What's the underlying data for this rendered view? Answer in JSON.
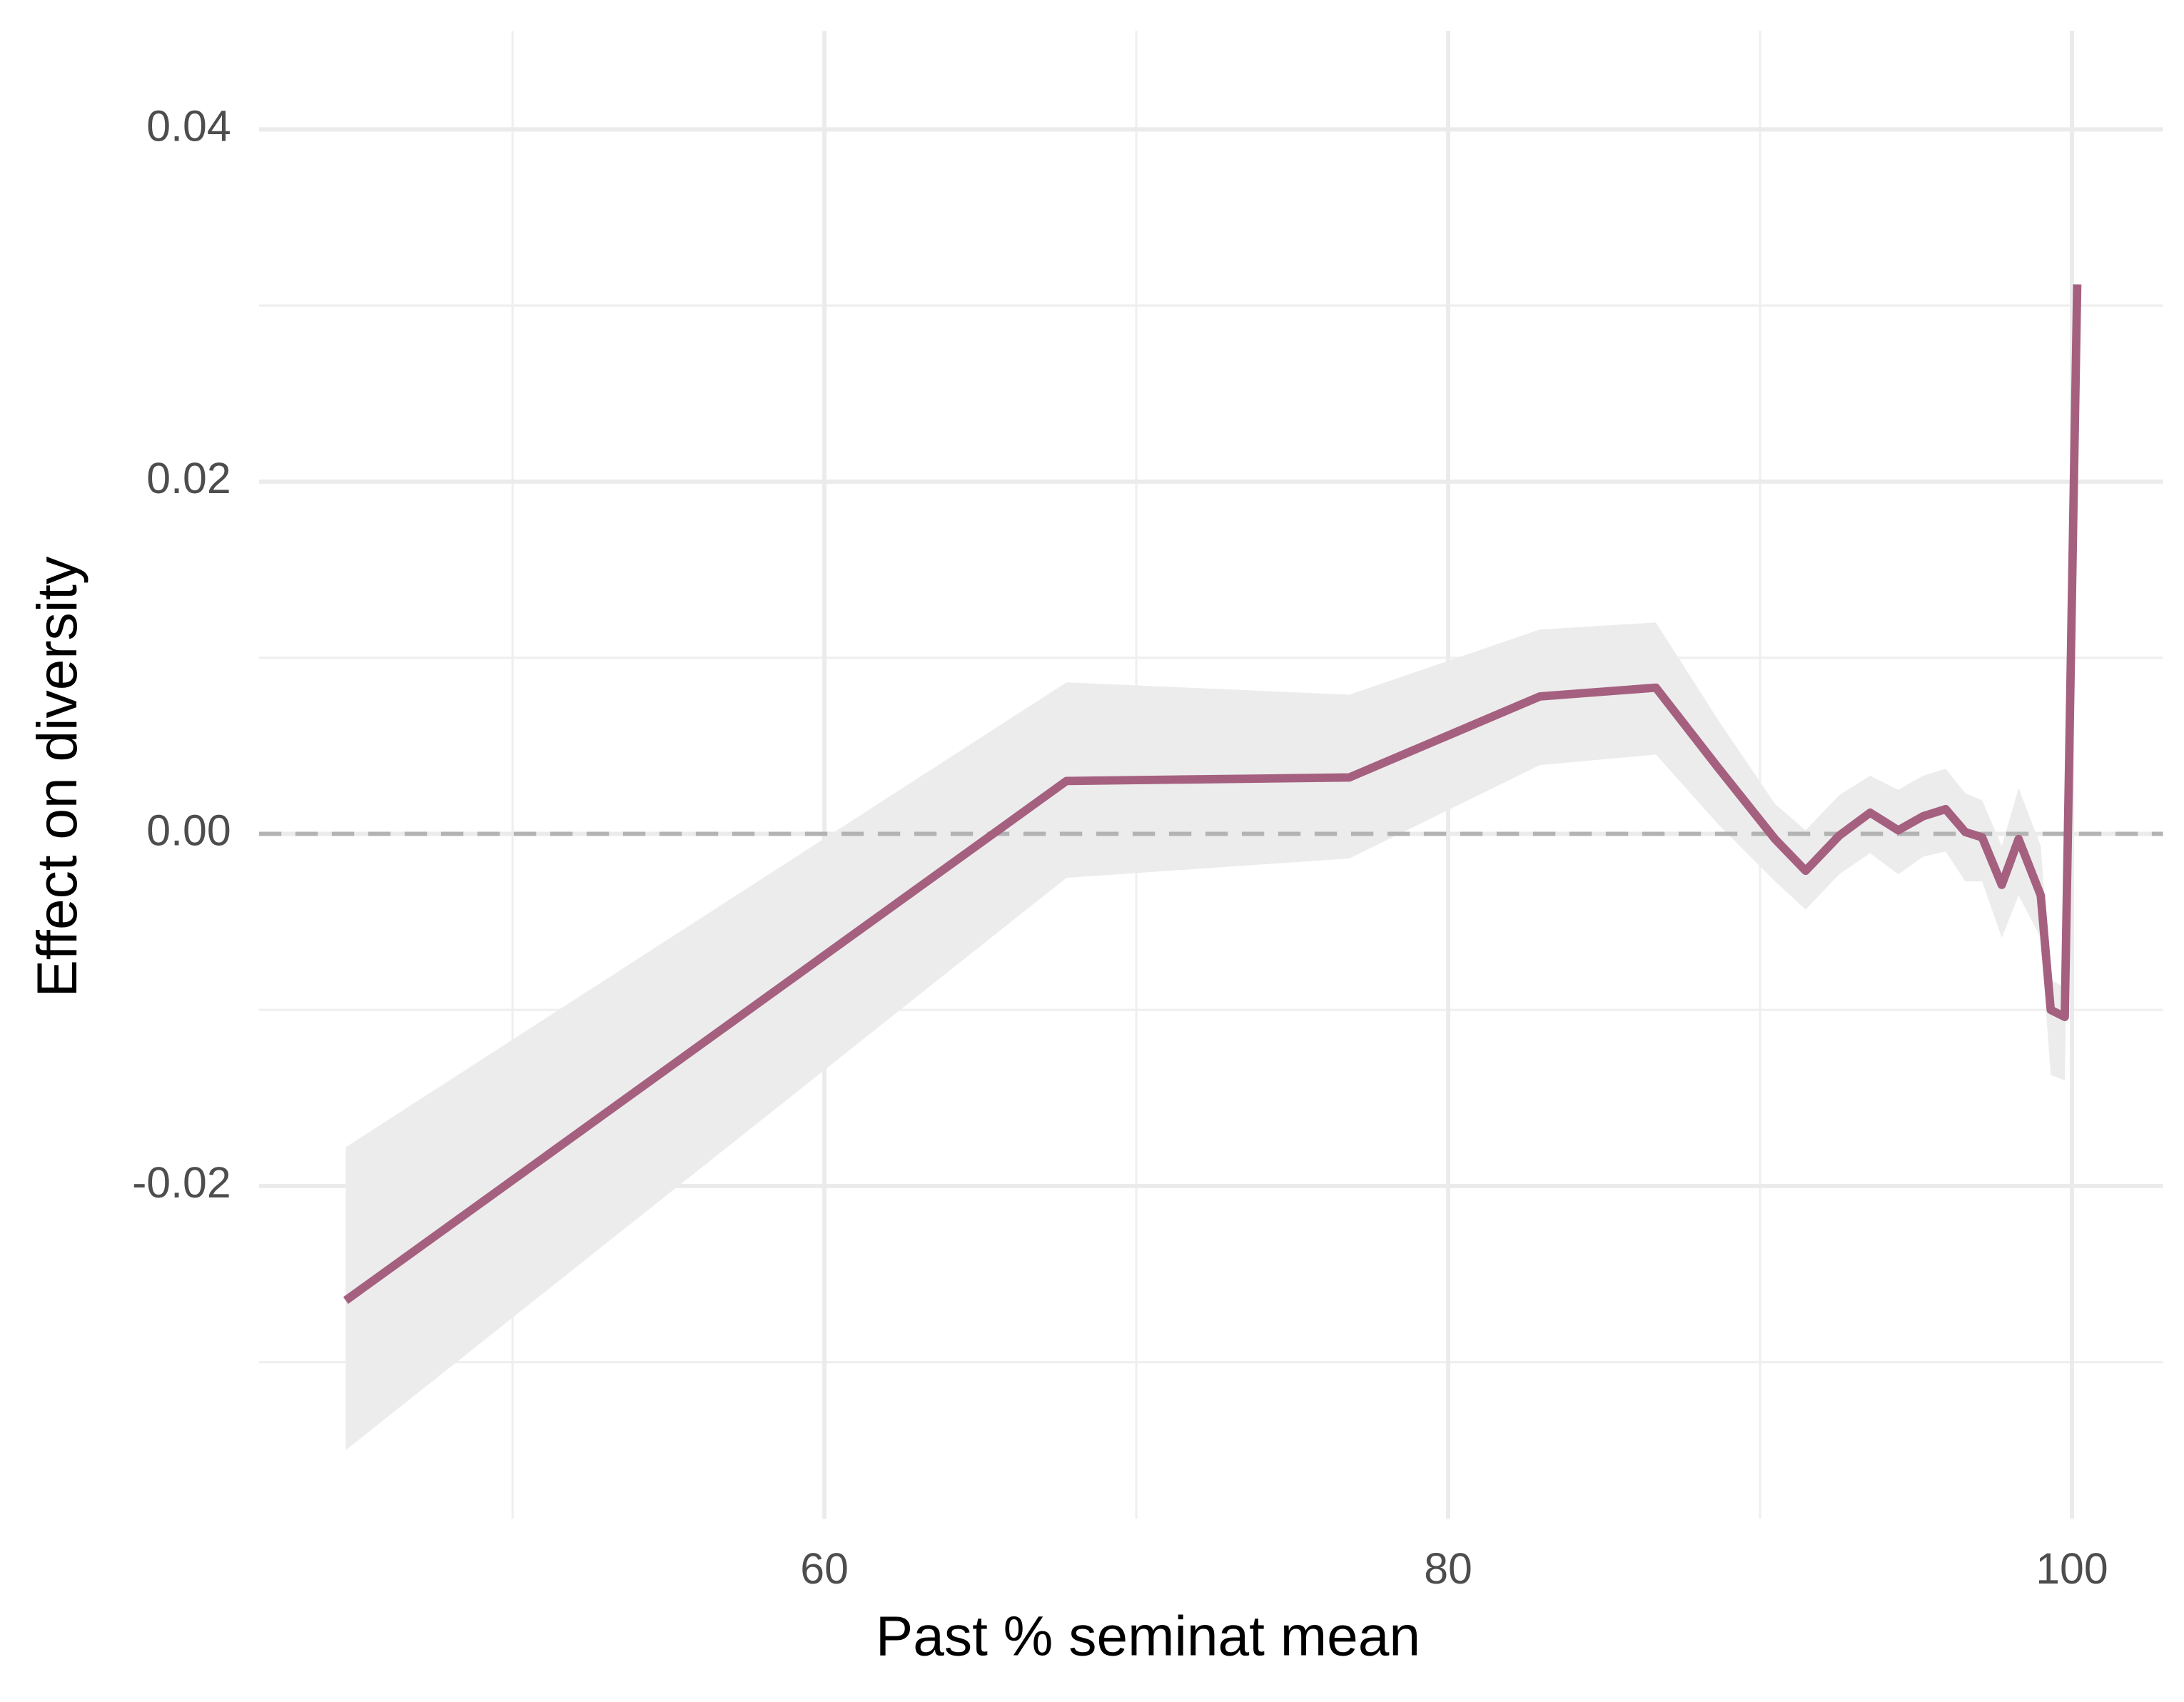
{
  "chart_data": {
    "type": "line",
    "xlabel": "Past % seminat mean",
    "ylabel": "Effect on diversity",
    "x": [
      44.65,
      67.76,
      76.83,
      82.94,
      86.66,
      88.68,
      90.48,
      91.46,
      92.54,
      93.53,
      94.43,
      95.23,
      95.95,
      96.58,
      97.12,
      97.75,
      98.29,
      99.0,
      99.32,
      99.77,
      100.17
    ],
    "series": [
      {
        "color": "#a5607f",
        "band_color": "#ececec",
        "values": [
          -0.0265,
          0.003,
          0.0032,
          0.0078,
          0.0083,
          0.0037,
          -0.0003,
          -0.0021,
          -0.0001,
          0.0012,
          0.0002,
          0.001,
          0.0014,
          0.0001,
          -0.0002,
          -0.0029,
          -0.0003,
          -0.0035,
          -0.01,
          -0.0104,
          0.0312
        ],
        "upper": [
          -0.0178,
          0.0086,
          0.0079,
          0.0116,
          0.012,
          0.0064,
          0.0017,
          0.0002,
          0.0022,
          0.0033,
          0.0025,
          0.0033,
          0.0037,
          0.0023,
          0.0019,
          -0.0007,
          0.0026,
          -0.0007,
          -0.0083,
          -0.0087,
          0.0315
        ],
        "lower": [
          -0.035,
          -0.0025,
          -0.0014,
          0.0039,
          0.0045,
          0.0005,
          -0.0027,
          -0.0043,
          -0.0023,
          -0.0011,
          -0.0023,
          -0.0013,
          -0.001,
          -0.0027,
          -0.0027,
          -0.0059,
          -0.0035,
          -0.0059,
          -0.0137,
          -0.014,
          0.0309
        ]
      }
    ],
    "xlim": [
      41.87,
      102.92
    ],
    "ylim": [
      -0.0389,
      0.0456
    ],
    "xticks": [
      60,
      80,
      100
    ],
    "yticks": [
      {
        "value": 0.04,
        "label": "0.04"
      },
      {
        "value": 0.02,
        "label": "0.02"
      },
      {
        "value": 0,
        "label": "0.00"
      },
      {
        "value": -0.02,
        "label": "-0.02"
      }
    ],
    "x_minor_ticks": [
      50,
      70,
      90
    ],
    "y_minor_ticks": [
      0.03,
      0.01,
      -0.01,
      -0.03
    ],
    "reference_line": 0,
    "grid": true
  }
}
